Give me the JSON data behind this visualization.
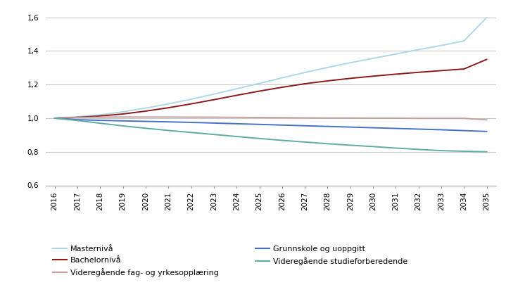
{
  "years": [
    2016,
    2017,
    2018,
    2019,
    2020,
    2021,
    2022,
    2023,
    2024,
    2025,
    2026,
    2027,
    2028,
    2029,
    2030,
    2031,
    2032,
    2033,
    2034,
    2035
  ],
  "series": [
    {
      "name": "Masternivå",
      "color": "#add8e6",
      "values": [
        1.0,
        1.008,
        1.02,
        1.038,
        1.06,
        1.085,
        1.113,
        1.143,
        1.175,
        1.207,
        1.24,
        1.272,
        1.302,
        1.33,
        1.356,
        1.382,
        1.408,
        1.433,
        1.46,
        1.6
      ]
    },
    {
      "name": "Bachelornivå",
      "color": "#8b1a1a",
      "values": [
        1.0,
        1.005,
        1.013,
        1.025,
        1.042,
        1.062,
        1.085,
        1.11,
        1.136,
        1.161,
        1.184,
        1.205,
        1.222,
        1.237,
        1.25,
        1.262,
        1.273,
        1.283,
        1.293,
        1.35
      ]
    },
    {
      "name": "Videregående fag- og yrkesopplæring",
      "color": "#c4a0a0",
      "values": [
        1.0,
        1.004,
        1.006,
        1.007,
        1.007,
        1.007,
        1.006,
        1.006,
        1.005,
        1.004,
        1.003,
        1.002,
        1.001,
        1.001,
        1.0,
        1.0,
        0.999,
        0.999,
        0.999,
        0.99
      ]
    },
    {
      "name": "Grunnskole og uoppgitt",
      "color": "#4472c4",
      "values": [
        1.0,
        0.991,
        0.987,
        0.984,
        0.981,
        0.978,
        0.975,
        0.971,
        0.967,
        0.963,
        0.959,
        0.955,
        0.951,
        0.947,
        0.943,
        0.939,
        0.935,
        0.931,
        0.926,
        0.921
      ]
    },
    {
      "name": "Videregående studieforberedende",
      "color": "#5fada0",
      "values": [
        1.0,
        0.986,
        0.97,
        0.954,
        0.94,
        0.927,
        0.915,
        0.903,
        0.891,
        0.879,
        0.868,
        0.858,
        0.848,
        0.839,
        0.831,
        0.822,
        0.814,
        0.807,
        0.803,
        0.8
      ]
    }
  ],
  "ylim": [
    0.6,
    1.65
  ],
  "yticks": [
    0.6,
    0.8,
    1.0,
    1.2,
    1.4,
    1.6
  ],
  "xlim": [
    2015.6,
    2035.4
  ],
  "background_color": "#ffffff",
  "grid_color": "#c8c8c8",
  "legend_col1": [
    "Masternivå",
    "Bachelornivå",
    "Videregående fag- og yrkesopplæring"
  ],
  "legend_col2": [
    "Grunnskole og uoppgitt",
    "Videregående studieforberedende"
  ]
}
